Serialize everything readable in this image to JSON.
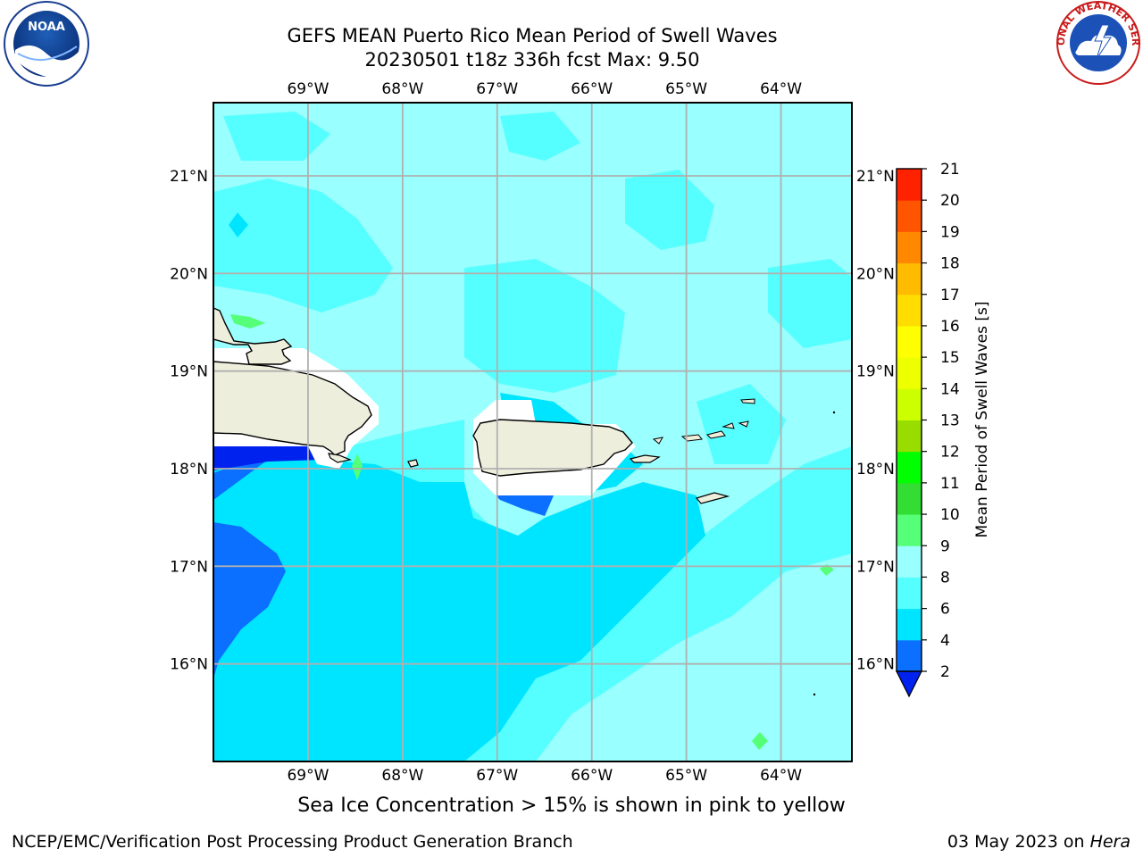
{
  "header": {
    "title_line1": "GEFS MEAN Puerto Rico Mean Period of Swell Waves",
    "title_line2": "20230501 t18z 336h fcst   Max: 9.50"
  },
  "logos": {
    "left": {
      "icon": "noaa-logo",
      "text": "NOAA"
    },
    "right": {
      "icon": "national-weather-service-logo",
      "text": "NATIONAL WEATHER SERVICE"
    }
  },
  "map": {
    "lon_labels": [
      "69°W",
      "68°W",
      "67°W",
      "66°W",
      "65°W",
      "64°W"
    ],
    "lat_labels": [
      "21°N",
      "20°N",
      "19°N",
      "18°N",
      "17°N",
      "16°N"
    ],
    "lon_range": [
      -70.0,
      -63.25
    ],
    "lat_range": [
      15.0,
      21.75
    ],
    "grid": true,
    "ocean_base_color": "#99FFFF",
    "land_color": "#EEEEDD",
    "masked_color": "#FFFFFF",
    "gridline_color": "#B0B0B0"
  },
  "colorbar": {
    "label": "Mean Period of Swell Waves [s]",
    "ticks": [
      "2",
      "4",
      "6",
      "8",
      "9",
      "10",
      "11",
      "12",
      "13",
      "14",
      "15",
      "16",
      "17",
      "18",
      "19",
      "20",
      "21"
    ],
    "colors": [
      "#0B6FFF",
      "#00E5FF",
      "#55FFFF",
      "#99FFFF",
      "#55FF77",
      "#33DD33",
      "#00FF00",
      "#99DD00",
      "#CCFF00",
      "#EEFF00",
      "#FFFF00",
      "#FFDD00",
      "#FFBB00",
      "#FF8800",
      "#FF5500",
      "#FF2200"
    ],
    "extend_low_color": "#0022EE"
  },
  "footer": {
    "note": "Sea Ice Concentration > 15% is shown in pink to yellow",
    "credit": "NCEP/EMC/Verification Post Processing Product Generation Branch",
    "date": "03 May 2023 on",
    "host": "Hera"
  }
}
